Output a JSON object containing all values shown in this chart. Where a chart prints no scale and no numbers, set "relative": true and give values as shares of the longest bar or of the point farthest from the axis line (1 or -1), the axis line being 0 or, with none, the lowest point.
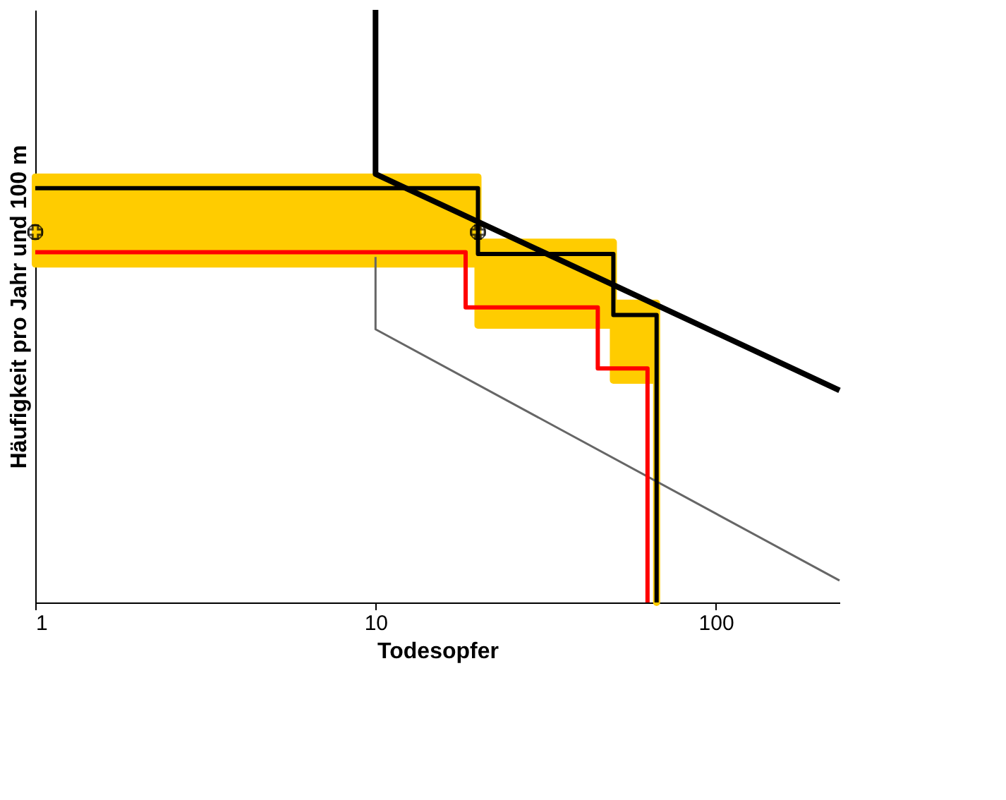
{
  "chart_data": {
    "type": "line",
    "relative": true,
    "xlabel": "Todesopfer",
    "ylabel": "Häufigkeit pro Jahr und 100 m",
    "log": "x",
    "xlim": [
      1,
      231
    ],
    "xticks": [
      1,
      10,
      100
    ],
    "grid": false,
    "series": [
      {
        "color": "#000000",
        "x": [
          10,
          10,
          231
        ],
        "values": [
          1,
          0.723,
          0.358
        ]
      },
      {
        "color": "#666666",
        "x": [
          10,
          10,
          231
        ],
        "values": [
          0.583,
          0.461,
          0.037
        ]
      },
      {
        "color": "#000000",
        "x": [
          1,
          20,
          20,
          50,
          50,
          67,
          67
        ],
        "values": [
          0.699,
          0.699,
          0.588,
          0.588,
          0.485,
          0.485,
          0
        ],
        "upper": [
          0.718,
          0.718,
          0.608,
          0.608,
          0.505,
          0.505,
          0
        ],
        "lower": [
          0.571,
          0.571,
          0.468,
          0.468,
          0.375,
          0.375,
          0
        ]
      },
      {
        "color": "#ff0000",
        "x": [
          1,
          18.4,
          18.4,
          45,
          45,
          63,
          63
        ],
        "values": [
          0.591,
          0.591,
          0.498,
          0.498,
          0.395,
          0.395,
          0
        ]
      },
      {
        "type": "scatter",
        "color": "#000000",
        "marker": "cross",
        "x": [
          1,
          20
        ],
        "values": [
          0.625,
          0.625
        ]
      }
    ]
  }
}
